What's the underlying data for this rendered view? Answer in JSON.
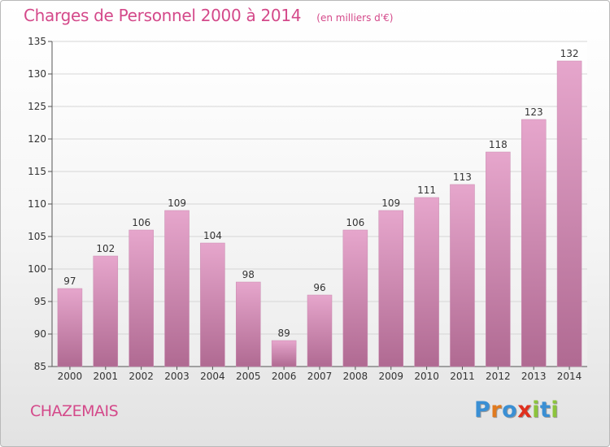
{
  "chart_data": {
    "type": "bar",
    "title": "Charges de Personnel 2000 à 2014",
    "subtitle": "(en milliers d'€)",
    "categories": [
      "2000",
      "2001",
      "2002",
      "2003",
      "2004",
      "2005",
      "2006",
      "2007",
      "2008",
      "2009",
      "2010",
      "2011",
      "2012",
      "2013",
      "2014"
    ],
    "values": [
      97,
      102,
      106,
      109,
      104,
      98,
      89,
      96,
      106,
      109,
      111,
      113,
      118,
      123,
      132
    ],
    "data_labels": [
      "97",
      "102",
      "106",
      "109",
      "104",
      "98",
      "89",
      "96",
      "106",
      "109",
      "111",
      "113",
      "118",
      "123",
      "132"
    ],
    "y_ticks": [
      85,
      90,
      95,
      100,
      105,
      110,
      115,
      120,
      125,
      130,
      135
    ],
    "ylim": [
      85,
      135
    ],
    "xlabel": "",
    "ylabel": "",
    "grid": true,
    "legend": "none",
    "bar_color_top": "#e6a6cc",
    "bar_color_bottom": "#b06a92"
  },
  "footer": {
    "commune": "CHAZEMAIS",
    "brand": "Proxiti"
  },
  "colors": {
    "accent": "#d4498a",
    "brand_letters": [
      "#3a8fd4",
      "#e07a1f",
      "#3a8fd4",
      "#e0301e",
      "#8cc43c",
      "#3a8fd4",
      "#8cc43c"
    ]
  }
}
